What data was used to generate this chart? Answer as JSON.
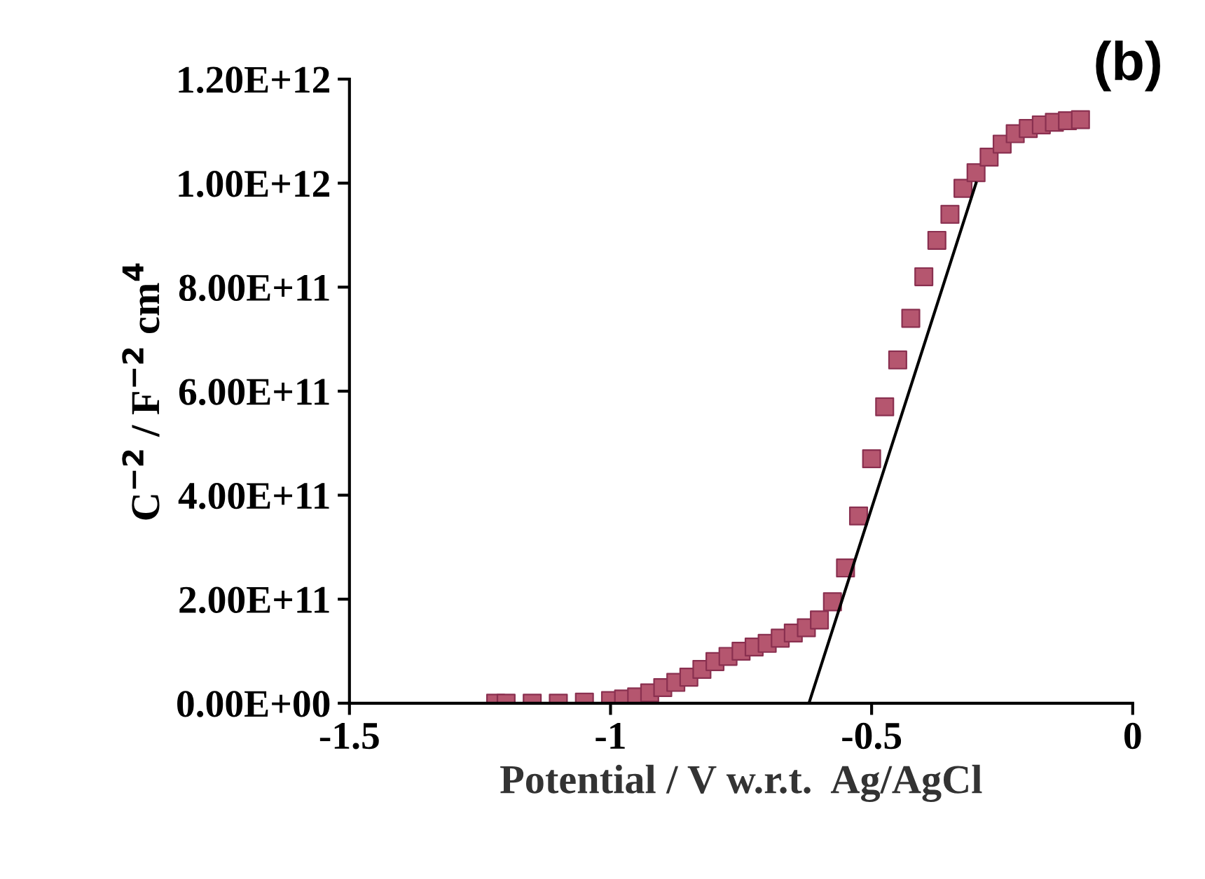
{
  "chart_data": {
    "type": "scatter",
    "xlabel": "Potential / V w.r.t.  Ag/AgCl",
    "ylabel": "C$^{−2}$ / F$^{−2}$ cm$^{4}$",
    "annotations": [
      "(b)"
    ],
    "series": [
      {
        "color": "#b5566f",
        "marker": "square",
        "x": [
          -1.22,
          -1.2,
          -1.15,
          -1.1,
          -1.05,
          -1.0,
          -0.975,
          -0.95,
          -0.925,
          -0.9,
          -0.875,
          -0.85,
          -0.825,
          -0.8,
          -0.775,
          -0.75,
          -0.725,
          -0.7,
          -0.675,
          -0.65,
          -0.625,
          -0.6,
          -0.575,
          -0.55,
          -0.525,
          -0.5,
          -0.475,
          -0.45,
          -0.425,
          -0.4,
          -0.375,
          -0.35,
          -0.325,
          -0.3,
          -0.275,
          -0.25,
          -0.225,
          -0.2,
          -0.175,
          -0.15,
          -0.125,
          -0.1
        ],
        "values": [
          0,
          0,
          0,
          0,
          2000000000.0,
          5000000000.0,
          8000000000.0,
          12000000000.0,
          20000000000.0,
          30000000000.0,
          40000000000.0,
          50000000000.0,
          65000000000.0,
          80000000000.0,
          90000000000.0,
          100000000000.0,
          108000000000.0,
          115000000000.0,
          125000000000.0,
          135000000000.0,
          145000000000.0,
          160000000000.0,
          195000000000.0,
          260000000000.0,
          360000000000.0,
          470000000000.0,
          570000000000.0,
          660000000000.0,
          740000000000.0,
          820000000000.0,
          890000000000.0,
          940000000000.0,
          990000000000.0,
          1020000000000.0,
          1050000000000.0,
          1075000000000.0,
          1095000000000.0,
          1105000000000.0,
          1112000000000.0,
          1117000000000.0,
          1120000000000.0,
          1122000000000.0
        ]
      },
      {
        "type": "line",
        "color": "#000000",
        "marker": "none",
        "x": [
          -0.62,
          -0.3
        ],
        "values": [
          0,
          1000000000000.0
        ]
      }
    ],
    "xlim": [
      -1.5,
      0
    ],
    "xticks": [
      {
        "value": -1.5,
        "label": "-1.5"
      },
      {
        "value": -1,
        "label": "-1"
      },
      {
        "value": -0.5,
        "label": "-0.5"
      },
      0
    ],
    "ylim": [
      0,
      1200000000000.0
    ],
    "yticks": [
      {
        "value": 0,
        "label": "0.00E+00"
      },
      {
        "value": 200000000000.0,
        "label": "2.00E+11"
      },
      {
        "value": 400000000000.0,
        "label": "4.00E+11"
      },
      {
        "value": 600000000000.0,
        "label": "6.00E+11"
      },
      {
        "value": 800000000000.0,
        "label": "8.00E+11"
      },
      {
        "value": 1000000000000.0,
        "label": "1.00E+12"
      },
      {
        "value": 1200000000000.0,
        "label": "1.20E+12"
      }
    ],
    "grid": false,
    "legend": false
  }
}
